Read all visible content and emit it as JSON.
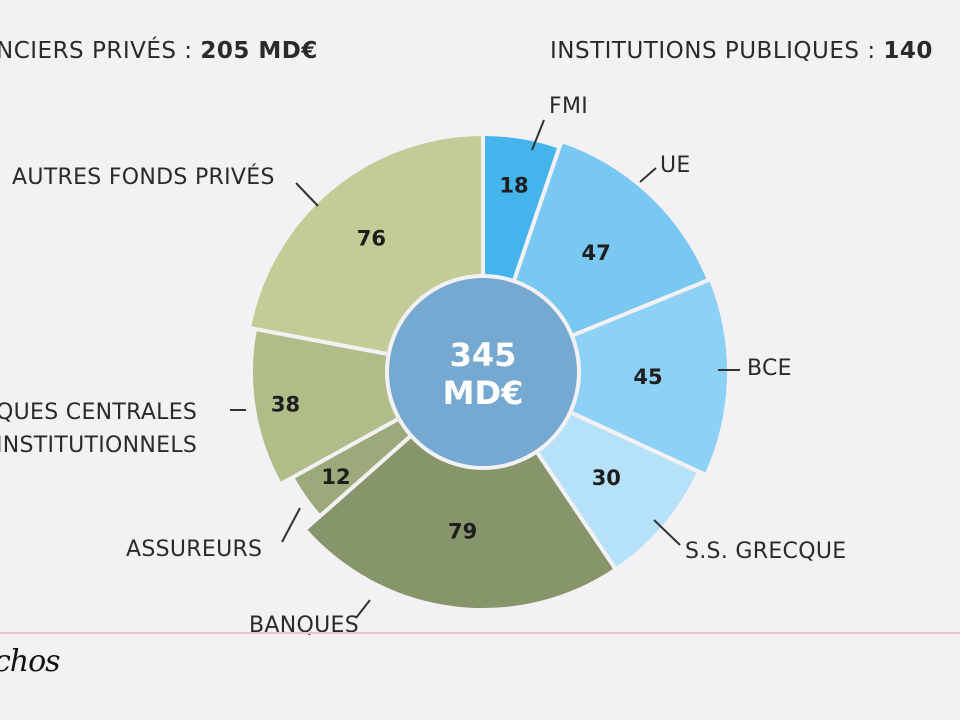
{
  "header": {
    "left_label": "NCIERS PRIVÉS : ",
    "left_value": "205 MD€",
    "right_label": "INSTITUTIONS PUBLIQUES : ",
    "right_value": "140"
  },
  "labels": {
    "fmi": "FMI",
    "ue": "UE",
    "bce": "BCE",
    "ssg": "S.S. GRECQUE",
    "banques": "BANQUES",
    "assureurs": "ASSUREURS",
    "bc_line1": "QUES CENTRALES",
    "bc_line2": "INSTITUTIONNELS",
    "autres": "AUTRES FONDS PRIVÉS"
  },
  "logo": "chos",
  "chart_data": {
    "type": "pie",
    "center_label": [
      "345",
      "MD€"
    ],
    "total": 345,
    "slices": [
      {
        "name": "FMI",
        "value": 18,
        "color": "#45b4ec"
      },
      {
        "name": "UE",
        "value": 47,
        "color": "#78c8f2"
      },
      {
        "name": "BCE",
        "value": 45,
        "color": "#8dd1f6"
      },
      {
        "name": "S.S. GRECQUE",
        "value": 30,
        "color": "#b5e2f9"
      },
      {
        "name": "BANQUES",
        "value": 79,
        "color": "#87966a"
      },
      {
        "name": "ASSUREURS",
        "value": 12,
        "color": "#9ca97a"
      },
      {
        "name": "BANQUES CENTRALES / INSTITUTIONNELS",
        "value": 38,
        "color": "#b0bd88"
      },
      {
        "name": "AUTRES FONDS PRIVÉS",
        "value": 76,
        "color": "#c2cc96"
      }
    ],
    "center_color": "#76a9d2"
  }
}
